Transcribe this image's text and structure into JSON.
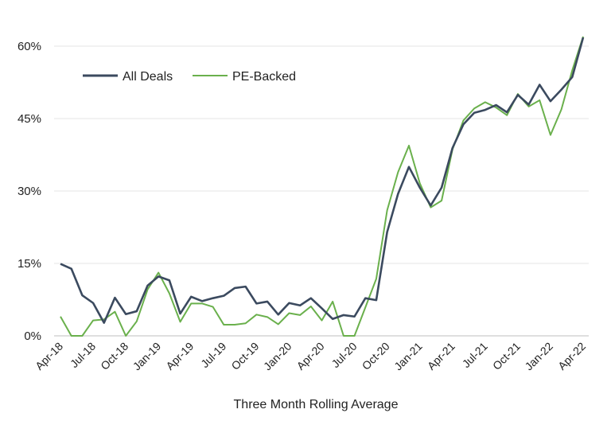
{
  "chart_data": {
    "type": "line",
    "title": "",
    "xlabel": "Three Month Rolling Average",
    "ylabel": "",
    "ylim": [
      0,
      60
    ],
    "yticks": [
      "0%",
      "15%",
      "30%",
      "45%",
      "60%"
    ],
    "ytick_values": [
      0,
      15,
      30,
      45,
      60
    ],
    "grid": true,
    "legend": "top-left",
    "x": [
      "Apr-18",
      "May-18",
      "Jun-18",
      "Jul-18",
      "Aug-18",
      "Sep-18",
      "Oct-18",
      "Nov-18",
      "Dec-18",
      "Jan-19",
      "Feb-19",
      "Mar-19",
      "Apr-19",
      "May-19",
      "Jun-19",
      "Jul-19",
      "Aug-19",
      "Sep-19",
      "Oct-19",
      "Nov-19",
      "Dec-19",
      "Jan-20",
      "Feb-20",
      "Mar-20",
      "Apr-20",
      "May-20",
      "Jun-20",
      "Jul-20",
      "Aug-20",
      "Sep-20",
      "Oct-20",
      "Nov-20",
      "Dec-20",
      "Jan-21",
      "Feb-21",
      "Mar-21",
      "Apr-21",
      "May-21",
      "Jun-21",
      "Jul-21",
      "Aug-21",
      "Sep-21",
      "Oct-21",
      "Nov-21",
      "Dec-21",
      "Jan-22",
      "Feb-22",
      "Mar-22",
      "Apr-22"
    ],
    "x_tick_labels": [
      "Apr-18",
      "Jul-18",
      "Oct-18",
      "Jan-19",
      "Apr-19",
      "Jul-19",
      "Oct-19",
      "Jan-20",
      "Apr-20",
      "Jul-20",
      "Oct-20",
      "Jan-21",
      "Apr-21",
      "Jul-21",
      "Oct-21",
      "Jan-22",
      "Apr-22"
    ],
    "series": [
      {
        "name": "All Deals",
        "color": "#3b4a5f",
        "values": [
          14.9,
          13.9,
          8.4,
          6.8,
          2.7,
          7.9,
          4.5,
          5.1,
          10.4,
          12.3,
          11.5,
          4.6,
          8.1,
          7.2,
          7.8,
          8.3,
          9.9,
          10.2,
          6.7,
          7.1,
          4.4,
          6.8,
          6.3,
          7.8,
          5.7,
          3.5,
          4.3,
          4.0,
          7.8,
          7.4,
          21.5,
          29.4,
          35.0,
          30.7,
          27.0,
          30.7,
          38.9,
          43.8,
          46.2,
          46.8,
          47.8,
          46.3,
          49.9,
          47.9,
          52.0,
          48.6,
          51.0,
          53.6,
          61.8
        ]
      },
      {
        "name": "PE-Backed",
        "color": "#6ab04c",
        "values": [
          4.0,
          0.0,
          0.0,
          3.2,
          3.4,
          5.0,
          0.0,
          3.0,
          9.6,
          13.1,
          8.8,
          2.9,
          6.7,
          6.7,
          6.0,
          2.3,
          2.3,
          2.6,
          4.4,
          3.9,
          2.4,
          4.7,
          4.3,
          6.1,
          3.2,
          7.1,
          0.0,
          0.0,
          5.9,
          11.8,
          26.0,
          33.9,
          39.4,
          31.6,
          26.6,
          28.0,
          38.6,
          44.6,
          47.1,
          48.4,
          47.3,
          45.7,
          50.1,
          47.5,
          48.8,
          41.6,
          46.9,
          55.0,
          62.0
        ]
      }
    ]
  }
}
